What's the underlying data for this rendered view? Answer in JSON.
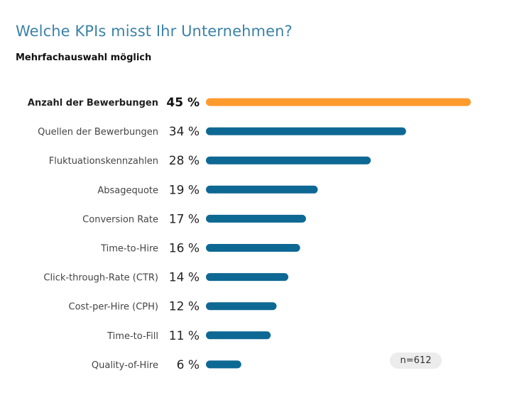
{
  "chart_data": {
    "type": "bar",
    "orientation": "horizontal",
    "title": "Welche KPIs misst Ihr Unternehmen?",
    "subtitle": "Mehrfachauswahl möglich",
    "categories": [
      "Anzahl der Bewerbungen",
      "Quellen der Bewerbungen",
      "Fluktuationskennzahlen",
      "Absagequote",
      "Conversion Rate",
      "Time-to-Hire",
      "Click-through-Rate (CTR)",
      "Cost-per-Hire (CPH)",
      "Time-to-Fill",
      "Quality-of-Hire"
    ],
    "values": [
      45,
      34,
      28,
      19,
      17,
      16,
      14,
      12,
      11,
      6
    ],
    "value_labels": [
      "45 %",
      "34 %",
      "28 %",
      "19 %",
      "17 %",
      "16 %",
      "14 %",
      "12 %",
      "11 %",
      "6 %"
    ],
    "unit": "%",
    "highlight_index": 0,
    "colors": {
      "highlight": "#ff9a2e",
      "default": "#0e6894"
    },
    "xlim": [
      0,
      45
    ],
    "grid": false,
    "xlabel": "",
    "ylabel": "",
    "annotation": "n=612"
  }
}
